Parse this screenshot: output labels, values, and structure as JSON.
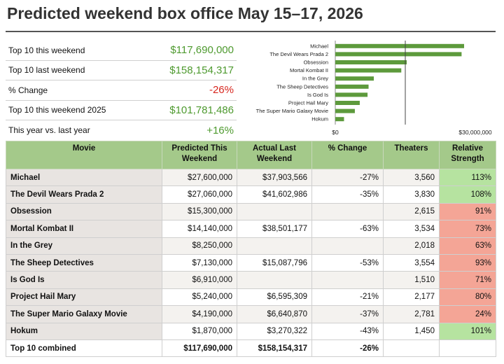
{
  "title": "Predicted weekend box office May 15–17, 2026",
  "summary": [
    {
      "label": "Top 10 this weekend",
      "value": "$117,690,000",
      "color": "#4e9a2f"
    },
    {
      "label": "Top 10 last weekend",
      "value": "$158,154,317",
      "color": "#4e9a2f"
    },
    {
      "label": "% Change",
      "value": "-26%",
      "color": "#d7261e"
    },
    {
      "label": "Top 10 this weekend 2025",
      "value": "$101,781,486",
      "color": "#4e9a2f"
    },
    {
      "label": "This year vs. last year",
      "value": "+16%",
      "color": "#4e9a2f"
    }
  ],
  "chart_data": {
    "type": "bar",
    "orientation": "horizontal",
    "categories": [
      "Michael",
      "The Devil Wears Prada 2",
      "Obsession",
      "Mortal Kombat II",
      "In the Grey",
      "The Sheep Detectives",
      "Is God Is",
      "Project Hail Mary",
      "The Super Mario Galaxy Movie",
      "Hokum"
    ],
    "values": [
      27600000,
      27060000,
      15300000,
      14140000,
      8250000,
      7130000,
      6910000,
      5240000,
      4190000,
      1870000
    ],
    "reference_line": 15000000,
    "xlim": [
      0,
      30000000
    ],
    "tick_labels": [
      "$0",
      "$30,000,000"
    ],
    "bar_color": "#5d9a3c",
    "grid": false
  },
  "table": {
    "headers": [
      "Movie",
      "Predicted This Weekend",
      "Actual Last Weekend",
      "% Change",
      "Theaters",
      "Relative Strength"
    ],
    "rows": [
      {
        "movie": "Michael",
        "predicted": "$27,600,000",
        "last": "$37,903,566",
        "change": "-27%",
        "theaters": "3,560",
        "strength": "113%",
        "strength_color": "green"
      },
      {
        "movie": "The Devil Wears Prada 2",
        "predicted": "$27,060,000",
        "last": "$41,602,986",
        "change": "-35%",
        "theaters": "3,830",
        "strength": "108%",
        "strength_color": "green"
      },
      {
        "movie": "Obsession",
        "predicted": "$15,300,000",
        "last": "",
        "change": "",
        "theaters": "2,615",
        "strength": "91%",
        "strength_color": "red"
      },
      {
        "movie": "Mortal Kombat II",
        "predicted": "$14,140,000",
        "last": "$38,501,177",
        "change": "-63%",
        "theaters": "3,534",
        "strength": "73%",
        "strength_color": "red"
      },
      {
        "movie": "In the Grey",
        "predicted": "$8,250,000",
        "last": "",
        "change": "",
        "theaters": "2,018",
        "strength": "63%",
        "strength_color": "red"
      },
      {
        "movie": "The Sheep Detectives",
        "predicted": "$7,130,000",
        "last": "$15,087,796",
        "change": "-53%",
        "theaters": "3,554",
        "strength": "93%",
        "strength_color": "red"
      },
      {
        "movie": "Is God Is",
        "predicted": "$6,910,000",
        "last": "",
        "change": "",
        "theaters": "1,510",
        "strength": "71%",
        "strength_color": "red"
      },
      {
        "movie": "Project Hail Mary",
        "predicted": "$5,240,000",
        "last": "$6,595,309",
        "change": "-21%",
        "theaters": "2,177",
        "strength": "80%",
        "strength_color": "red"
      },
      {
        "movie": "The Super Mario Galaxy Movie",
        "predicted": "$4,190,000",
        "last": "$6,640,870",
        "change": "-37%",
        "theaters": "2,781",
        "strength": "24%",
        "strength_color": "red"
      },
      {
        "movie": "Hokum",
        "predicted": "$1,870,000",
        "last": "$3,270,322",
        "change": "-43%",
        "theaters": "1,450",
        "strength": "101%",
        "strength_color": "green"
      }
    ],
    "total": {
      "movie": "Top 10 combined",
      "predicted": "$117,690,000",
      "last": "$158,154,317",
      "change": "-26%",
      "theaters": "",
      "strength": ""
    }
  }
}
